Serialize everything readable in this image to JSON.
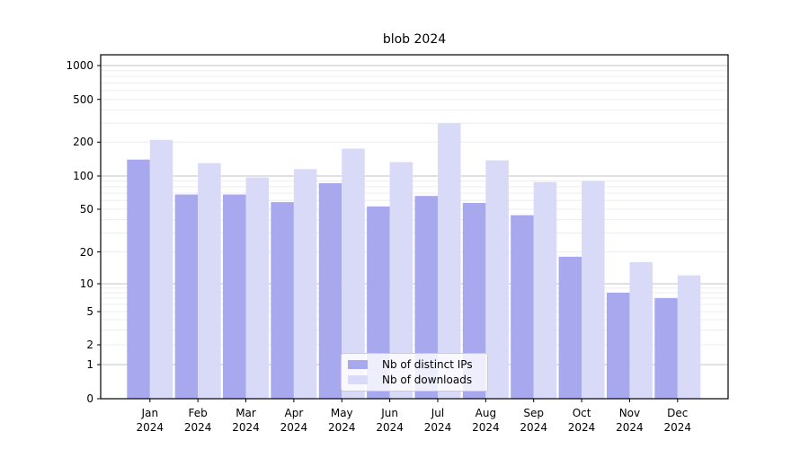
{
  "title": "blob 2024",
  "legend": {
    "items": [
      {
        "label": "Nb of distinct IPs",
        "color": "#a8a8ef"
      },
      {
        "label": "Nb of downloads",
        "color": "#d9d9f8"
      }
    ]
  },
  "axes": {
    "ytick_labels": [
      "1000",
      "500",
      "200",
      "100",
      "50",
      "20",
      "10",
      "5",
      "2",
      "1",
      "0"
    ],
    "x_year_line": "2024"
  },
  "chart_data": {
    "type": "bar",
    "title": "blob 2024",
    "categories": [
      "Jan",
      "Feb",
      "Mar",
      "Apr",
      "May",
      "Jun",
      "Jul",
      "Aug",
      "Sep",
      "Oct",
      "Nov",
      "Dec"
    ],
    "x_second_line": "2024",
    "series": [
      {
        "name": "Nb of distinct IPs",
        "color": "#a8a8ef",
        "values": [
          140,
          68,
          68,
          58,
          86,
          53,
          66,
          57,
          44,
          18,
          8,
          7
        ]
      },
      {
        "name": "Nb of downloads",
        "color": "#d9d9f8",
        "values": [
          210,
          130,
          97,
          115,
          175,
          133,
          300,
          138,
          88,
          90,
          16,
          12
        ]
      }
    ],
    "xlabel": "",
    "ylabel": "",
    "yscale": "symlog",
    "yticks": [
      0,
      1,
      2,
      5,
      10,
      20,
      50,
      100,
      200,
      500,
      1000
    ],
    "ylim": [
      0,
      1000
    ],
    "grid": "on",
    "major_grid_values": [
      1,
      10,
      100,
      1000
    ],
    "grid_major_color": "#c3c3c3",
    "grid_minor_color": "#ededed",
    "legend_position": "lower center"
  }
}
